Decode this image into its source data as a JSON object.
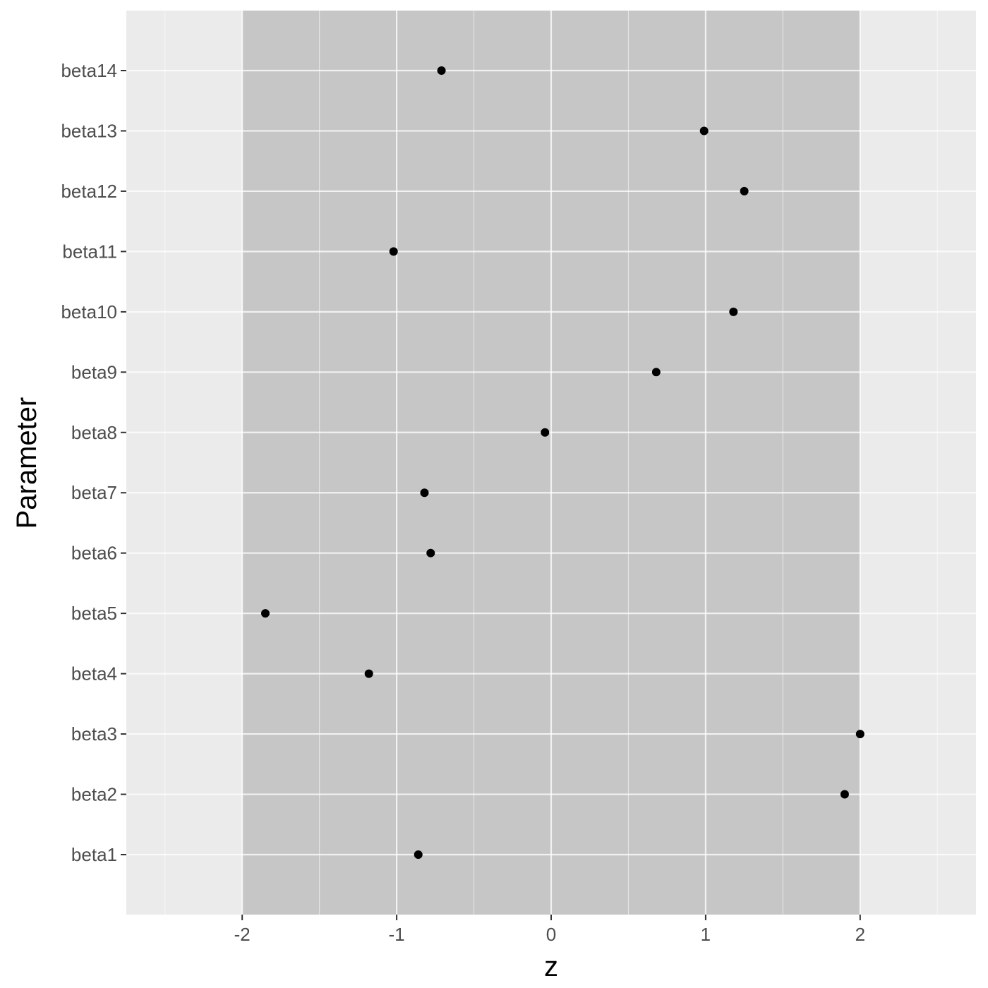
{
  "chart_data": {
    "type": "scatter",
    "xlabel": "z",
    "ylabel": "Parameter",
    "xlim": [
      -2.75,
      2.75
    ],
    "x_ticks": [
      -2,
      -1,
      0,
      1,
      2
    ],
    "x_tick_labels": [
      "-2",
      "-1",
      "0",
      "1",
      "2"
    ],
    "shaded_band": [
      -2,
      2
    ],
    "grid": true,
    "categories": [
      "beta1",
      "beta2",
      "beta3",
      "beta4",
      "beta5",
      "beta6",
      "beta7",
      "beta8",
      "beta9",
      "beta10",
      "beta11",
      "beta12",
      "beta13",
      "beta14"
    ],
    "values": [
      -0.86,
      1.9,
      2.0,
      -1.18,
      -1.85,
      -0.78,
      -0.82,
      -0.04,
      0.68,
      1.18,
      -1.02,
      1.25,
      0.99,
      -0.71
    ]
  },
  "colors": {
    "panel_background": "#ebebeb",
    "shaded_band": "#c6c6c6",
    "grid_line": "#ffffff",
    "point": "#000000"
  }
}
